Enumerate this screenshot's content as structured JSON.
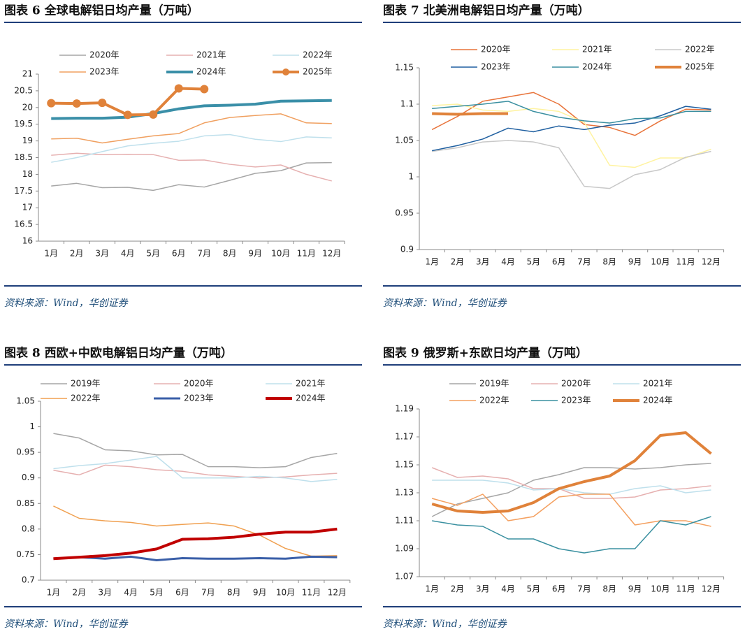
{
  "chart_data": [
    {
      "type": "line",
      "title": "图表 6  全球电解铝日均产量（万吨）",
      "source": "资料来源：Wind，华创证券",
      "categories": [
        "1月",
        "2月",
        "3月",
        "4月",
        "5月",
        "6月",
        "7月",
        "8月",
        "9月",
        "10月",
        "11月",
        "12月"
      ],
      "ylim": [
        16,
        21
      ],
      "yticks": [
        16,
        16.5,
        17,
        17.5,
        18,
        18.5,
        19,
        19.5,
        20,
        20.5,
        21
      ],
      "series": [
        {
          "name": "2020年",
          "color": "#a6a6a6",
          "line_width": 1.5,
          "values": [
            17.65,
            17.73,
            17.6,
            17.61,
            17.52,
            17.69,
            17.62,
            17.82,
            18.03,
            18.11,
            18.34,
            18.35
          ]
        },
        {
          "name": "2021年",
          "color": "#e6b0b0",
          "line_width": 1.5,
          "values": [
            18.57,
            18.63,
            18.59,
            18.6,
            18.59,
            18.42,
            18.43,
            18.3,
            18.22,
            18.28,
            18.0,
            17.8
          ]
        },
        {
          "name": "2022年",
          "color": "#bfe0ec",
          "line_width": 1.5,
          "values": [
            18.36,
            18.5,
            18.68,
            18.85,
            18.93,
            18.99,
            19.15,
            19.19,
            19.05,
            18.98,
            19.12,
            19.09
          ]
        },
        {
          "name": "2023年",
          "color": "#f0a060",
          "line_width": 1.5,
          "values": [
            19.06,
            19.08,
            18.94,
            19.05,
            19.15,
            19.22,
            19.54,
            19.7,
            19.76,
            19.81,
            19.54,
            19.52
          ]
        },
        {
          "name": "2024年",
          "color": "#3a8fa8",
          "line_width": 4,
          "values": [
            19.67,
            19.68,
            19.68,
            19.71,
            19.82,
            19.96,
            20.05,
            20.07,
            20.1,
            20.19,
            20.2,
            20.21
          ]
        },
        {
          "name": "2025年",
          "color": "#e0823a",
          "line_width": 4,
          "marker": "circle",
          "values": [
            20.13,
            20.12,
            20.14,
            19.78,
            19.79,
            20.57,
            20.55,
            null,
            null,
            null,
            null,
            null
          ]
        }
      ]
    },
    {
      "type": "line",
      "title": "图表 7  北美洲电解铝日均产量（万吨）",
      "source": "资料来源：Wind，华创证券",
      "categories": [
        "1月",
        "2月",
        "3月",
        "4月",
        "5月",
        "6月",
        "7月",
        "8月",
        "9月",
        "10月",
        "11月",
        "12月"
      ],
      "ylim": [
        0.9,
        1.15
      ],
      "yticks": [
        0.9,
        0.95,
        1,
        1.05,
        1.1,
        1.15
      ],
      "series": [
        {
          "name": "2020年",
          "color": "#e8733a",
          "line_width": 1.5,
          "values": [
            1.065,
            1.083,
            1.104,
            1.11,
            1.116,
            1.1,
            1.072,
            1.068,
            1.057,
            1.077,
            1.093,
            1.092
          ]
        },
        {
          "name": "2021年",
          "color": "#fff3a0",
          "line_width": 1.5,
          "values": [
            1.098,
            1.1,
            1.092,
            1.09,
            1.094,
            1.09,
            1.075,
            1.016,
            1.013,
            1.026,
            1.026,
            1.038
          ]
        },
        {
          "name": "2022年",
          "color": "#c8c8c8",
          "line_width": 1.5,
          "values": [
            1.035,
            1.04,
            1.048,
            1.05,
            1.048,
            1.04,
            0.987,
            0.984,
            1.003,
            1.01,
            1.027,
            1.035
          ]
        },
        {
          "name": "2023年",
          "color": "#1f5fa0",
          "line_width": 1.5,
          "values": [
            1.036,
            1.043,
            1.052,
            1.067,
            1.062,
            1.07,
            1.065,
            1.071,
            1.074,
            1.084,
            1.097,
            1.093
          ]
        },
        {
          "name": "2024年",
          "color": "#3a8fa0",
          "line_width": 1.5,
          "values": [
            1.094,
            1.097,
            1.1,
            1.104,
            1.09,
            1.082,
            1.077,
            1.074,
            1.08,
            1.081,
            1.09,
            1.09
          ]
        },
        {
          "name": "2025年",
          "color": "#e0823a",
          "line_width": 4,
          "values": [
            1.087,
            1.086,
            1.087,
            1.087,
            null,
            null,
            null,
            null,
            null,
            null,
            null,
            null
          ]
        }
      ]
    },
    {
      "type": "line",
      "title": "图表 8  西欧+中欧电解铝日均产量（万吨）",
      "source": "资料来源：Wind，华创证券",
      "categories": [
        "1月",
        "2月",
        "3月",
        "4月",
        "5月",
        "6月",
        "7月",
        "8月",
        "9月",
        "10月",
        "11月",
        "12月"
      ],
      "ylim": [
        0.7,
        1.05
      ],
      "yticks": [
        0.7,
        0.75,
        0.8,
        0.85,
        0.9,
        0.95,
        1,
        1.05
      ],
      "series": [
        {
          "name": "2019年",
          "color": "#a6a6a6",
          "line_width": 1.5,
          "values": [
            0.987,
            0.978,
            0.955,
            0.953,
            0.945,
            0.946,
            0.922,
            0.922,
            0.92,
            0.922,
            0.94,
            0.948
          ]
        },
        {
          "name": "2020年",
          "color": "#e6b0b0",
          "line_width": 1.5,
          "values": [
            0.915,
            0.906,
            0.925,
            0.922,
            0.916,
            0.913,
            0.906,
            0.903,
            0.9,
            0.902,
            0.906,
            0.909
          ]
        },
        {
          "name": "2021年",
          "color": "#bfe0ec",
          "line_width": 1.5,
          "values": [
            0.918,
            0.924,
            0.928,
            0.935,
            0.942,
            0.9,
            0.9,
            0.9,
            0.903,
            0.9,
            0.893,
            0.897
          ]
        },
        {
          "name": "2022年",
          "color": "#f0a050",
          "line_width": 1.5,
          "values": [
            0.845,
            0.821,
            0.816,
            0.813,
            0.806,
            0.809,
            0.812,
            0.806,
            0.788,
            0.762,
            0.747,
            0.748
          ]
        },
        {
          "name": "2023年",
          "color": "#3a5fa8",
          "line_width": 3,
          "values": [
            0.742,
            0.745,
            0.742,
            0.746,
            0.739,
            0.743,
            0.742,
            0.742,
            0.743,
            0.742,
            0.746,
            0.745
          ]
        },
        {
          "name": "2024年",
          "color": "#c00000",
          "line_width": 4,
          "values": [
            0.742,
            0.745,
            0.748,
            0.753,
            0.761,
            0.78,
            0.781,
            0.784,
            0.79,
            0.794,
            0.794,
            0.8
          ]
        }
      ]
    },
    {
      "type": "line",
      "title": "图表 9  俄罗斯+东欧日均产量（万吨）",
      "source": "资料来源：Wind，华创证券",
      "categories": [
        "1月",
        "2月",
        "3月",
        "4月",
        "5月",
        "6月",
        "7月",
        "8月",
        "9月",
        "10月",
        "11月",
        "12月"
      ],
      "ylim": [
        1.07,
        1.19
      ],
      "yticks": [
        1.07,
        1.09,
        1.11,
        1.13,
        1.15,
        1.17,
        1.19
      ],
      "series": [
        {
          "name": "2019年",
          "color": "#a6a6a6",
          "line_width": 1.5,
          "values": [
            1.113,
            1.122,
            1.126,
            1.13,
            1.139,
            1.143,
            1.148,
            1.148,
            1.147,
            1.148,
            1.15,
            1.151
          ]
        },
        {
          "name": "2020年",
          "color": "#e6b0b0",
          "line_width": 1.5,
          "values": [
            1.148,
            1.141,
            1.142,
            1.14,
            1.133,
            1.133,
            1.126,
            1.126,
            1.127,
            1.132,
            1.133,
            1.135
          ]
        },
        {
          "name": "2021年",
          "color": "#bfe0ec",
          "line_width": 1.5,
          "values": [
            1.139,
            1.139,
            1.139,
            1.137,
            1.132,
            1.133,
            1.13,
            1.129,
            1.133,
            1.135,
            1.13,
            1.132
          ]
        },
        {
          "name": "2022年",
          "color": "#f4a060",
          "line_width": 1.5,
          "values": [
            1.126,
            1.121,
            1.129,
            1.11,
            1.113,
            1.127,
            1.129,
            1.129,
            1.107,
            1.11,
            1.11,
            1.106
          ]
        },
        {
          "name": "2023年",
          "color": "#3a90a0",
          "line_width": 1.5,
          "values": [
            1.11,
            1.107,
            1.106,
            1.097,
            1.097,
            1.09,
            1.087,
            1.09,
            1.09,
            1.11,
            1.107,
            1.113
          ]
        },
        {
          "name": "2024年",
          "color": "#e0823a",
          "line_width": 4,
          "values": [
            1.122,
            1.117,
            1.116,
            1.117,
            1.123,
            1.133,
            1.138,
            1.142,
            1.153,
            1.171,
            1.173,
            1.158
          ]
        }
      ]
    }
  ]
}
